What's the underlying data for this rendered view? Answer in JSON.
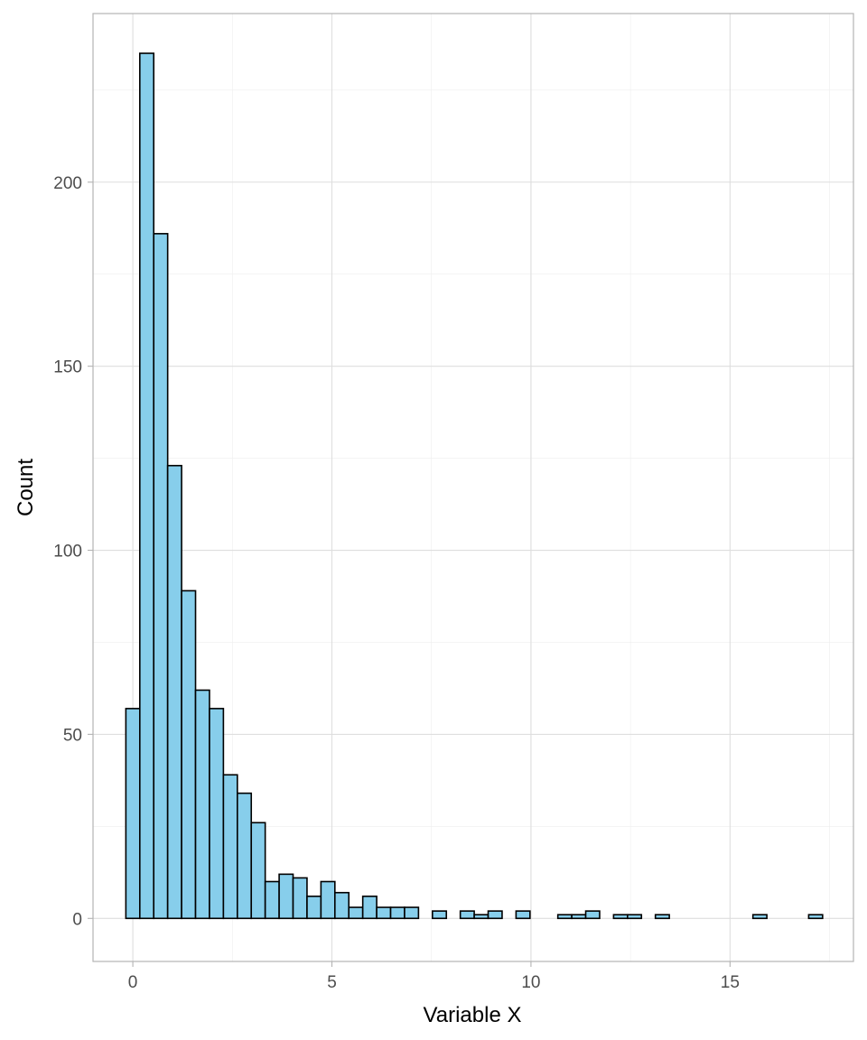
{
  "chart_data": {
    "type": "bar",
    "subtype": "histogram",
    "title": "",
    "xlabel": "Variable X",
    "ylabel": "Count",
    "xlim": [
      -1.0,
      18.1
    ],
    "ylim": [
      -11.7,
      245.8
    ],
    "x_ticks": [
      0,
      5,
      10,
      15
    ],
    "y_ticks": [
      0,
      50,
      100,
      150,
      200
    ],
    "grid": true,
    "legend": "none",
    "bin_width": 0.35,
    "bin_start": -0.175,
    "counts": [
      57,
      235,
      186,
      123,
      89,
      62,
      57,
      39,
      34,
      26,
      10,
      12,
      11,
      6,
      10,
      7,
      3,
      6,
      3,
      3,
      3,
      0,
      2,
      0,
      2,
      1,
      2,
      0,
      2,
      0,
      0,
      1,
      1,
      2,
      0,
      1,
      1,
      0,
      1,
      0,
      0,
      0,
      0,
      0,
      0,
      1,
      0,
      0,
      0,
      1
    ],
    "colors": {
      "bar_fill": "#87CEEB",
      "bar_outline": "#000000",
      "panel_border": "#b3b3b3",
      "grid_major": "#dedede",
      "grid_minor": "#eeeeee",
      "tick_text": "#4d4d4d",
      "title_text": "#000000"
    }
  }
}
